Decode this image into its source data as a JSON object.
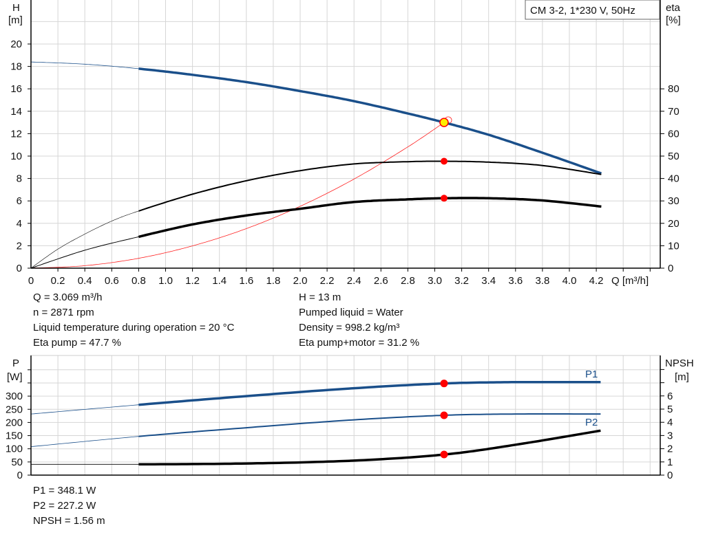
{
  "chart_data": [
    {
      "type": "line",
      "title": "CM 3-2, 1*230 V, 50Hz",
      "xlabel": "Q [m³/h]",
      "ylabel": "H",
      "ylabel_unit": "[m]",
      "y2label": "eta",
      "y2label_unit": "[%]",
      "xlim": [
        0,
        4.6
      ],
      "ylim": [
        0,
        24
      ],
      "y2lim": [
        0,
        120
      ],
      "xticks": [
        "0",
        "0.2",
        "0.4",
        "0.6",
        "0.8",
        "1.0",
        "1.2",
        "1.4",
        "1.6",
        "1.8",
        "2.0",
        "2.2",
        "2.4",
        "2.6",
        "2.8",
        "3.0",
        "3.2",
        "3.4",
        "3.6",
        "3.8",
        "4.0",
        "4.2"
      ],
      "yticks": [
        "0",
        "2",
        "4",
        "6",
        "8",
        "10",
        "12",
        "14",
        "16",
        "18",
        "20"
      ],
      "y2ticks": [
        "0",
        "10",
        "20",
        "30",
        "40",
        "50",
        "60",
        "70",
        "80"
      ],
      "grid": true,
      "colors": {
        "head": "#1a4f8a",
        "eta": "#000000",
        "system": "#ff2020",
        "point": "#ff0000",
        "duty": "#ffee00"
      },
      "series": [
        {
          "key": "head",
          "axis": "H",
          "x": [
            0,
            0.4,
            0.8,
            1.2,
            1.6,
            2.0,
            2.4,
            2.8,
            3.069,
            3.4,
            3.8,
            4.25
          ],
          "y": [
            18.4,
            18.2,
            17.8,
            17.25,
            16.6,
            15.8,
            14.9,
            13.8,
            13.0,
            11.9,
            10.3,
            8.4
          ]
        },
        {
          "key": "eta_pump",
          "axis": "eta",
          "x": [
            0,
            0.2,
            0.4,
            0.6,
            0.8,
            1.2,
            1.6,
            2.0,
            2.4,
            2.8,
            3.069,
            3.4,
            3.8,
            4.25
          ],
          "y": [
            0,
            8.5,
            15.2,
            21,
            25.5,
            33,
            39,
            43.5,
            46.5,
            47.5,
            47.7,
            47.3,
            45.8,
            41.7
          ]
        },
        {
          "key": "eta_pump_motor",
          "axis": "eta",
          "x": [
            0,
            0.4,
            0.8,
            1.2,
            1.6,
            2.0,
            2.4,
            2.8,
            3.069,
            3.4,
            3.8,
            4.25
          ],
          "y": [
            0,
            8,
            14,
            19.5,
            23.5,
            26.5,
            29.5,
            30.7,
            31.2,
            31.2,
            30.2,
            27.4
          ]
        },
        {
          "key": "system",
          "axis": "H",
          "x": [
            0,
            0.4,
            0.8,
            1.2,
            1.6,
            2.0,
            2.4,
            2.8,
            3.069
          ],
          "y": [
            0,
            0.22,
            0.88,
            1.99,
            3.53,
            5.52,
            7.95,
            10.82,
            13.0
          ]
        }
      ],
      "duty_point": {
        "Q": 3.069,
        "H": 13,
        "eta_pump": 47.7,
        "eta_pump_motor": 31.2
      }
    },
    {
      "type": "line",
      "ylabel": "P",
      "ylabel_unit": "[W]",
      "y2label": "NPSH",
      "y2label_unit": "[m]",
      "xlim": [
        0,
        4.6
      ],
      "ylim": [
        0,
        455
      ],
      "y2lim": [
        0,
        9.1
      ],
      "yticks": [
        "0",
        "50",
        "100",
        "150",
        "200",
        "250",
        "300"
      ],
      "y2ticks": [
        "0",
        "1",
        "2",
        "3",
        "4",
        "5",
        "6"
      ],
      "grid": true,
      "series": [
        {
          "name": "P1",
          "axis": "P",
          "x": [
            0,
            0.8,
            1.6,
            2.4,
            3.069,
            3.6,
            4.25
          ],
          "y": [
            232,
            267,
            300,
            330,
            348.1,
            353,
            353
          ]
        },
        {
          "name": "P2",
          "axis": "P",
          "x": [
            0,
            0.8,
            1.6,
            2.4,
            3.069,
            3.6,
            4.25
          ],
          "y": [
            108,
            147,
            180,
            210,
            227.2,
            232,
            232
          ]
        },
        {
          "key": "npsh",
          "axis": "NPSH",
          "x": [
            0,
            0.8,
            1.6,
            2.4,
            3.069,
            3.6,
            4.25
          ],
          "y": [
            0.82,
            0.82,
            0.88,
            1.1,
            1.56,
            2.3,
            3.4
          ]
        }
      ]
    }
  ],
  "info_top": {
    "q": "Q = 3.069 m³/h",
    "n": "n = 2871 rpm",
    "temp": "Liquid temperature during operation = 20 °C",
    "eta_pump": "Eta pump = 47.7 %",
    "h": "H = 13 m",
    "liquid": "Pumped liquid = Water",
    "density": "Density = 998.2 kg/m³",
    "eta_pm": "Eta pump+motor = 31.2 %"
  },
  "info_bottom": {
    "p1": "P1 = 348.1 W",
    "p2": "P2 = 227.2 W",
    "npsh": "NPSH = 1.56 m"
  }
}
